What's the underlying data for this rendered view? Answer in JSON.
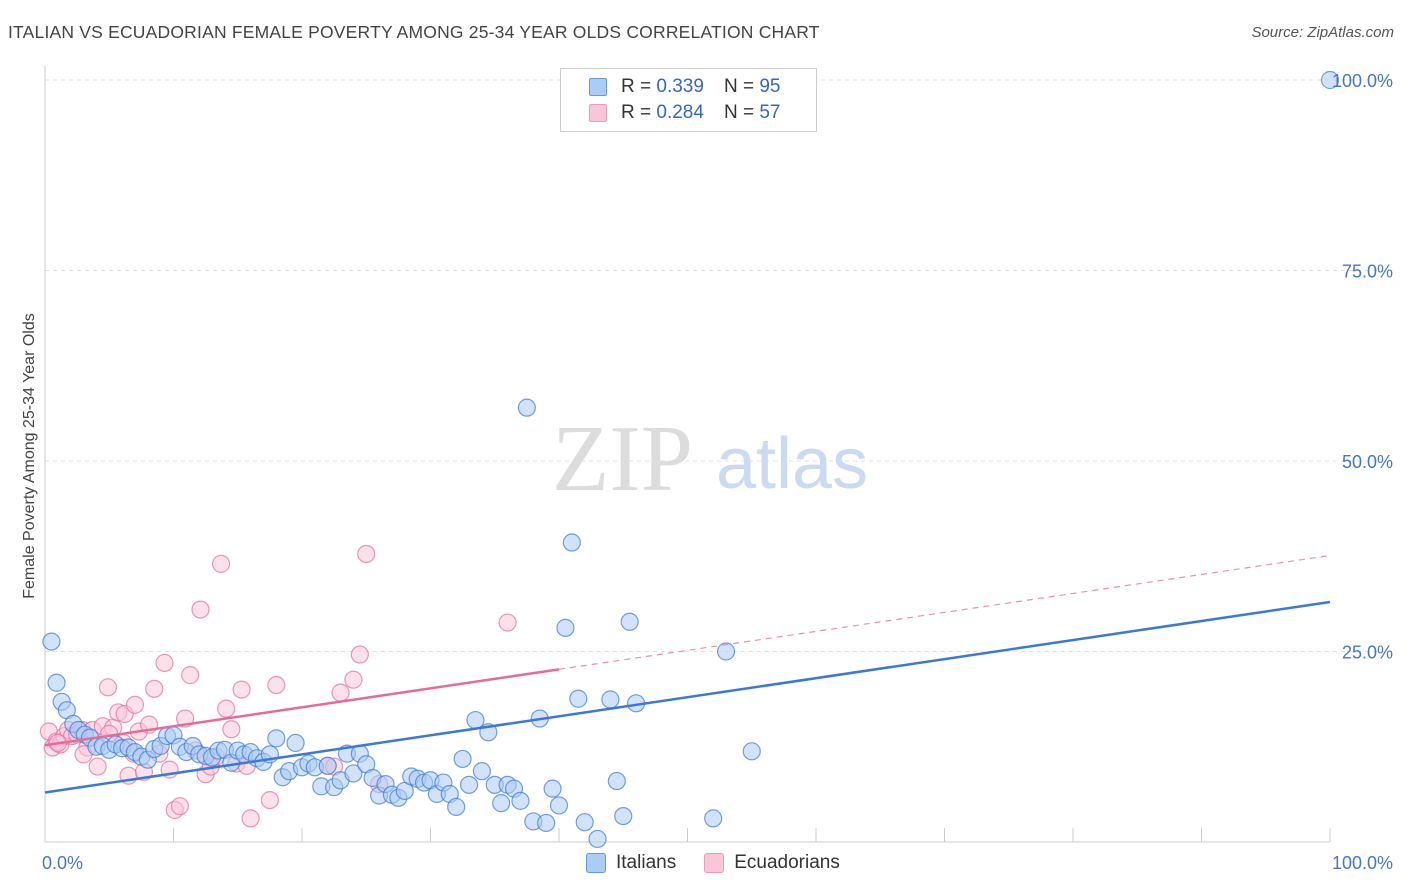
{
  "title": "ITALIAN VS ECUADORIAN FEMALE POVERTY AMONG 25-34 YEAR OLDS CORRELATION CHART",
  "source": "Source: ZipAtlas.com",
  "watermark": {
    "zip": "ZIP",
    "atlas": "atlas"
  },
  "legend": {
    "rows": [
      {
        "r_label": "R =",
        "r_value": "0.339",
        "n_label": "N =",
        "n_value": "95",
        "color": "#6699dd",
        "fill": "#aaccf5"
      },
      {
        "r_label": "R =",
        "r_value": "0.284",
        "n_label": "N =",
        "n_value": "57",
        "color": "#ee99bb",
        "fill": "#f9c6d8"
      }
    ]
  },
  "bottom_legend": [
    {
      "label": "Italians",
      "color": "#6699dd",
      "fill": "#aaccf5"
    },
    {
      "label": "Ecuadorians",
      "color": "#ee99bb",
      "fill": "#f9c6d8"
    }
  ],
  "chart_data": {
    "type": "scatter",
    "title": "ITALIAN VS ECUADORIAN FEMALE POVERTY AMONG 25-34 YEAR OLDS CORRELATION CHART",
    "xlabel": "",
    "ylabel": "Female Poverty Among 25-34 Year Olds",
    "xlim": [
      0,
      100
    ],
    "ylim": [
      0,
      100
    ],
    "x_tick_labels": [
      "0.0%",
      "100.0%"
    ],
    "y_tick_labels": [
      "25.0%",
      "50.0%",
      "75.0%",
      "100.0%"
    ],
    "y_ticks": [
      25,
      50,
      75,
      100
    ],
    "grid": true,
    "legend_position": "top-center",
    "series": [
      {
        "name": "Italians",
        "color": "#3b78d8",
        "fill": "#aaccf5",
        "trend": {
          "x": [
            0,
            100
          ],
          "y": [
            6.5,
            31.5
          ],
          "dashed_from": null
        },
        "points": [
          [
            0.5,
            26.3
          ],
          [
            0.9,
            20.9
          ],
          [
            1.3,
            18.4
          ],
          [
            1.7,
            17.3
          ],
          [
            2.2,
            15.5
          ],
          [
            2.6,
            14.7
          ],
          [
            3.1,
            14.1
          ],
          [
            3.5,
            13.7
          ],
          [
            4.0,
            12.5
          ],
          [
            4.5,
            12.6
          ],
          [
            5.0,
            12.1
          ],
          [
            5.5,
            12.8
          ],
          [
            6.0,
            12.3
          ],
          [
            6.5,
            12.4
          ],
          [
            7.0,
            11.8
          ],
          [
            7.5,
            11.2
          ],
          [
            8.0,
            10.8
          ],
          [
            8.5,
            12.2
          ],
          [
            9.0,
            12.6
          ],
          [
            9.5,
            13.9
          ],
          [
            10.0,
            14.0
          ],
          [
            10.5,
            12.5
          ],
          [
            11.0,
            11.8
          ],
          [
            11.5,
            12.6
          ],
          [
            12.0,
            11.5
          ],
          [
            12.5,
            11.3
          ],
          [
            13.0,
            11.1
          ],
          [
            13.5,
            12.0
          ],
          [
            14.0,
            12.1
          ],
          [
            14.5,
            10.4
          ],
          [
            15.0,
            12.0
          ],
          [
            15.5,
            11.5
          ],
          [
            16.0,
            11.8
          ],
          [
            16.5,
            11.0
          ],
          [
            17.0,
            10.5
          ],
          [
            17.5,
            11.5
          ],
          [
            18.0,
            13.6
          ],
          [
            18.5,
            8.5
          ],
          [
            19.0,
            9.3
          ],
          [
            19.5,
            13.0
          ],
          [
            20.0,
            9.8
          ],
          [
            20.5,
            10.3
          ],
          [
            21.0,
            9.8
          ],
          [
            21.5,
            7.3
          ],
          [
            22.0,
            10.0
          ],
          [
            22.5,
            7.2
          ],
          [
            23.0,
            8.1
          ],
          [
            23.5,
            11.6
          ],
          [
            24.0,
            9.0
          ],
          [
            24.5,
            11.6
          ],
          [
            25.0,
            10.2
          ],
          [
            25.5,
            8.4
          ],
          [
            26.0,
            6.1
          ],
          [
            26.5,
            7.6
          ],
          [
            27.0,
            6.2
          ],
          [
            27.5,
            5.8
          ],
          [
            28.0,
            6.7
          ],
          [
            28.5,
            8.6
          ],
          [
            29.0,
            8.3
          ],
          [
            29.5,
            7.8
          ],
          [
            30.0,
            8.1
          ],
          [
            30.5,
            6.3
          ],
          [
            31.0,
            7.8
          ],
          [
            31.5,
            6.3
          ],
          [
            32.0,
            4.6
          ],
          [
            32.5,
            10.9
          ],
          [
            33.0,
            7.5
          ],
          [
            33.5,
            16.0
          ],
          [
            34.0,
            9.3
          ],
          [
            34.5,
            14.4
          ],
          [
            35.0,
            7.5
          ],
          [
            35.5,
            5.1
          ],
          [
            36.0,
            7.5
          ],
          [
            36.5,
            7.0
          ],
          [
            37.0,
            5.4
          ],
          [
            37.5,
            57.0
          ],
          [
            38.0,
            2.7
          ],
          [
            38.5,
            16.2
          ],
          [
            39.0,
            2.5
          ],
          [
            39.5,
            7.0
          ],
          [
            40.0,
            4.8
          ],
          [
            40.5,
            28.1
          ],
          [
            41.0,
            39.3
          ],
          [
            41.5,
            18.8
          ],
          [
            42.0,
            2.6
          ],
          [
            43.0,
            0.4
          ],
          [
            44.0,
            18.7
          ],
          [
            44.5,
            8.0
          ],
          [
            45.0,
            3.4
          ],
          [
            45.5,
            28.9
          ],
          [
            46.0,
            18.2
          ],
          [
            52.0,
            3.1
          ],
          [
            53.0,
            25.0
          ],
          [
            55.0,
            11.9
          ],
          [
            100.0,
            100.0
          ]
        ]
      },
      {
        "name": "Ecuadorians",
        "color": "#e56b9b",
        "fill": "#f9c6d8",
        "trend": {
          "x": [
            0,
            100
          ],
          "y": [
            12.7,
            37.6
          ],
          "solid_to_x": 40
        },
        "points": [
          [
            0.3,
            14.5
          ],
          [
            0.6,
            12.4
          ],
          [
            0.9,
            13.2
          ],
          [
            1.2,
            12.8
          ],
          [
            1.5,
            13.9
          ],
          [
            1.8,
            14.7
          ],
          [
            2.1,
            13.9
          ],
          [
            2.5,
            14.1
          ],
          [
            2.9,
            14.7
          ],
          [
            3.3,
            12.4
          ],
          [
            3.7,
            14.7
          ],
          [
            4.1,
            9.9
          ],
          [
            4.5,
            15.2
          ],
          [
            4.9,
            20.3
          ],
          [
            5.3,
            15.0
          ],
          [
            5.7,
            17.0
          ],
          [
            6.1,
            13.0
          ],
          [
            6.5,
            8.7
          ],
          [
            6.9,
            11.6
          ],
          [
            7.3,
            14.5
          ],
          [
            7.7,
            9.2
          ],
          [
            8.1,
            15.4
          ],
          [
            8.5,
            20.1
          ],
          [
            8.9,
            11.6
          ],
          [
            9.3,
            23.5
          ],
          [
            9.7,
            9.5
          ],
          [
            10.1,
            4.2
          ],
          [
            10.5,
            4.7
          ],
          [
            10.9,
            16.2
          ],
          [
            11.3,
            21.9
          ],
          [
            11.7,
            12.0
          ],
          [
            12.1,
            30.5
          ],
          [
            12.5,
            8.9
          ],
          [
            12.9,
            9.9
          ],
          [
            13.3,
            11.2
          ],
          [
            13.7,
            36.5
          ],
          [
            14.1,
            17.5
          ],
          [
            14.5,
            14.8
          ],
          [
            14.9,
            10.3
          ],
          [
            15.3,
            20.0
          ],
          [
            15.7,
            10.0
          ],
          [
            16.0,
            3.1
          ],
          [
            17.5,
            5.5
          ],
          [
            18.0,
            20.6
          ],
          [
            22.0,
            10.0
          ],
          [
            22.5,
            9.9
          ],
          [
            23.0,
            19.6
          ],
          [
            24.0,
            21.3
          ],
          [
            24.5,
            24.6
          ],
          [
            25.0,
            37.8
          ],
          [
            26.0,
            7.6
          ],
          [
            36.0,
            28.8
          ],
          [
            5.0,
            14.2
          ],
          [
            6.2,
            16.8
          ],
          [
            7.0,
            18.0
          ],
          [
            3.0,
            11.5
          ],
          [
            1.0,
            13.0
          ]
        ]
      }
    ]
  }
}
